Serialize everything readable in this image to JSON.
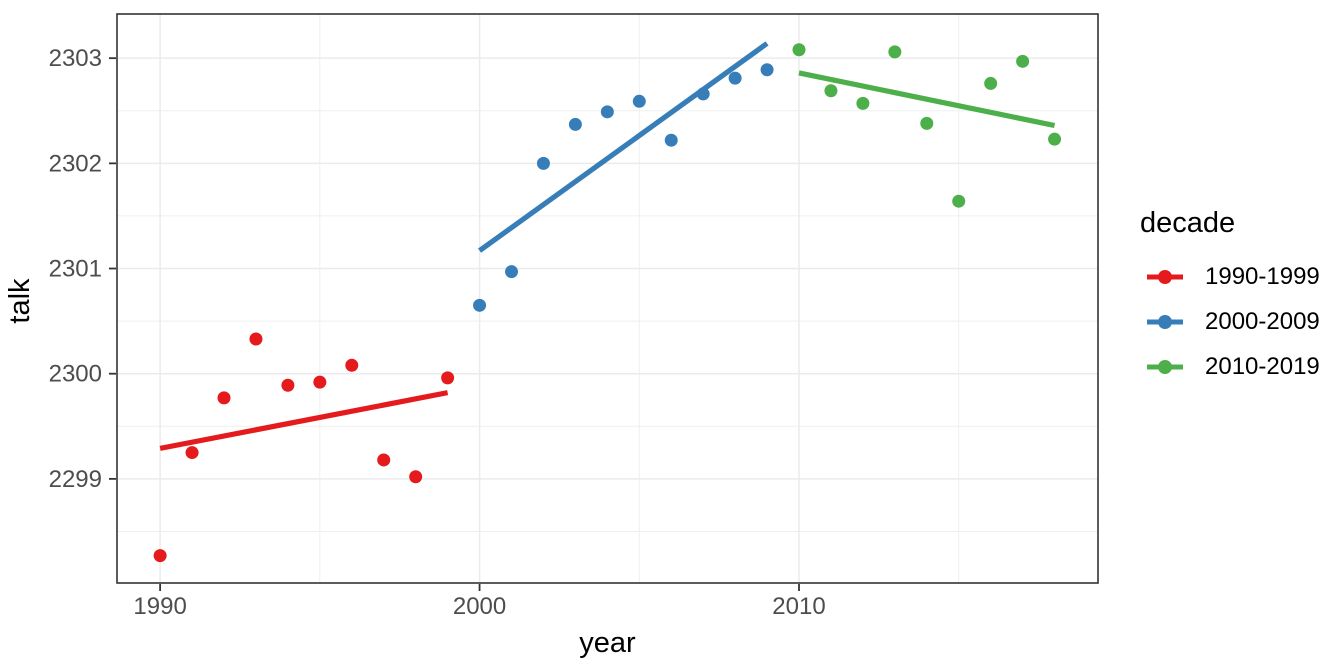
{
  "chart_data": {
    "type": "scatter",
    "title": "",
    "xlabel": "year",
    "ylabel": "talk",
    "legend_title": "decade",
    "legend_position": "right",
    "grid": true,
    "background": "#FFFFFF",
    "panel_border_color": "#333333",
    "grid_major_color": "#EBEBEB",
    "grid_minor_color": "#EFEFEF",
    "tick_color": "#333333",
    "tick_label_color": "#4D4D4D",
    "axis_title_color": "#000000",
    "xlim": [
      1988.65,
      2019.36
    ],
    "ylim": [
      2298.01,
      2303.42
    ],
    "x_ticks": [
      1990,
      2000,
      2010
    ],
    "x_tick_labels": [
      "1990",
      "2000",
      "2010"
    ],
    "x_minor_ticks": [
      1995,
      2005,
      2015
    ],
    "y_ticks": [
      2299,
      2300,
      2301,
      2302,
      2303
    ],
    "y_tick_labels": [
      "2299",
      "2300",
      "2301",
      "2302",
      "2303"
    ],
    "y_minor_ticks": [
      2298.5,
      2299.5,
      2300.5,
      2301.5,
      2302.5
    ],
    "series": [
      {
        "name": "1990-1999",
        "color": "#E41A1C",
        "x": [
          1990,
          1991,
          1992,
          1993,
          1994,
          1995,
          1996,
          1997,
          1998,
          1999
        ],
        "y": [
          2298.27,
          2299.25,
          2299.77,
          2300.33,
          2299.89,
          2299.92,
          2300.08,
          2299.18,
          2299.02,
          2299.96
        ],
        "trend": {
          "x": [
            1990,
            1999
          ],
          "y": [
            2299.29,
            2299.82
          ]
        }
      },
      {
        "name": "2000-2009",
        "color": "#377EB8",
        "x": [
          2000,
          2001,
          2002,
          2003,
          2004,
          2005,
          2006,
          2007,
          2008,
          2009
        ],
        "y": [
          2300.65,
          2300.97,
          2302.0,
          2302.37,
          2302.49,
          2302.59,
          2302.22,
          2302.66,
          2302.81,
          2302.89
        ],
        "trend": {
          "x": [
            2000,
            2009
          ],
          "y": [
            2301.17,
            2303.14
          ]
        }
      },
      {
        "name": "2010-2019",
        "color": "#4DAF4A",
        "x": [
          2010,
          2011,
          2012,
          2013,
          2014,
          2015,
          2016,
          2017,
          2018
        ],
        "y": [
          2303.08,
          2302.69,
          2302.57,
          2303.06,
          2302.38,
          2301.64,
          2302.76,
          2302.97,
          2302.23
        ],
        "trend": {
          "x": [
            2010,
            2018
          ],
          "y": [
            2302.86,
            2302.36
          ]
        }
      }
    ]
  }
}
